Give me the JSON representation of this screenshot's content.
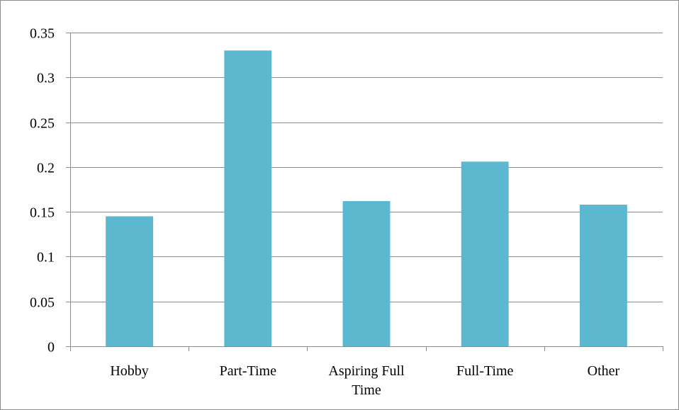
{
  "chart_data": {
    "type": "bar",
    "title": "",
    "xlabel": "",
    "ylabel": "",
    "categories": [
      [
        "Hobby"
      ],
      [
        "Part-Time"
      ],
      [
        "Aspiring Full",
        "Time"
      ],
      [
        "Full-Time"
      ],
      [
        "Other"
      ]
    ],
    "values": [
      0.145,
      0.33,
      0.162,
      0.206,
      0.158
    ],
    "ylim": [
      0,
      0.35
    ],
    "yticks": [
      "0",
      "0.05",
      "0.1",
      "0.15",
      "0.2",
      "0.25",
      "0.3",
      "0.35"
    ],
    "grid": true,
    "legend": "none",
    "colors": {
      "bar": "#5BB8CF",
      "grid": "#8C8C8C",
      "axis": "#8C8C8C"
    }
  }
}
